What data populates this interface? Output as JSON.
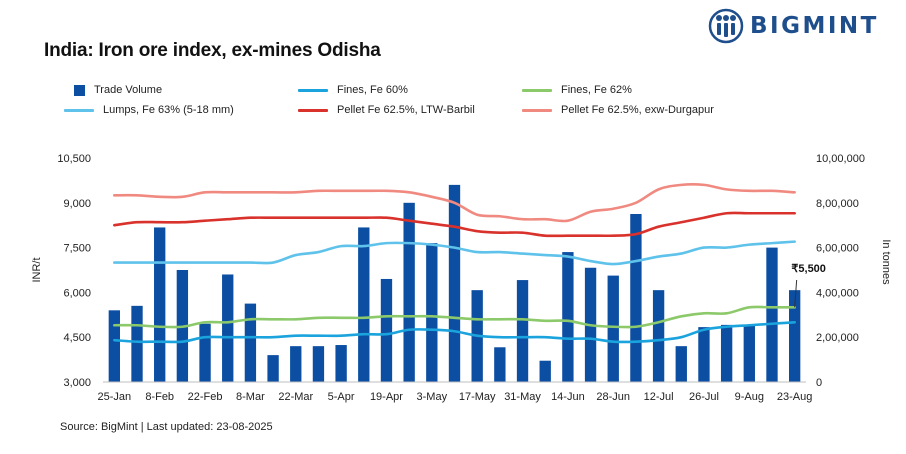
{
  "header": {
    "title": "India: Iron ore index, ex-mines Odisha",
    "brand": "BIGMINT"
  },
  "source": "Source: BigMint | Last updated: 23-08-2025",
  "colors": {
    "trade_volume": "#0b4ea2",
    "fines_fe60": "#1aa3dc",
    "fines_fe62": "#8cc96a",
    "lumps_fe63": "#5fc2ea",
    "pellet_barbil": "#d9312b",
    "pellet_durgapur": "#f08a80"
  },
  "chart_data": {
    "type": "bar",
    "x": [
      "25-Jan",
      "1-Feb",
      "8-Feb",
      "15-Feb",
      "22-Feb",
      "1-Mar",
      "8-Mar",
      "15-Mar",
      "22-Mar",
      "29-Mar",
      "5-Apr",
      "12-Apr",
      "19-Apr",
      "26-Apr",
      "3-May",
      "10-May",
      "17-May",
      "24-May",
      "31-May",
      "7-Jun",
      "14-Jun",
      "21-Jun",
      "28-Jun",
      "5-Jul",
      "12-Jul",
      "19-Jul",
      "26-Jul",
      "2-Aug",
      "9-Aug",
      "16-Aug",
      "23-Aug"
    ],
    "tick_labels": [
      "25-Jan",
      "8-Feb",
      "22-Feb",
      "8-Mar",
      "22-Mar",
      "5-Apr",
      "19-Apr",
      "3-May",
      "17-May",
      "31-May",
      "14-Jun",
      "28-Jun",
      "12-Jul",
      "26-Jul",
      "9-Aug",
      "23-Aug"
    ],
    "left_axis": {
      "label": "INR/t",
      "min": 3000,
      "max": 10500,
      "ticks": [
        "3,000",
        "4,500",
        "6,000",
        "7,500",
        "9,000",
        "10,500"
      ],
      "tick_values": [
        3000,
        4500,
        6000,
        7500,
        9000,
        10500
      ]
    },
    "right_axis": {
      "label": "In tonnes",
      "min": 0,
      "max": 1000000,
      "ticks": [
        "0",
        "2,00,000",
        "4,00,000",
        "6,00,000",
        "8,00,000",
        "10,00,000"
      ],
      "tick_values": [
        0,
        200000,
        400000,
        600000,
        800000,
        1000000
      ]
    },
    "bars": {
      "name": "Trade Volume",
      "axis": "right",
      "values": [
        320000,
        340000,
        690000,
        500000,
        260000,
        480000,
        350000,
        120000,
        160000,
        160000,
        165000,
        690000,
        460000,
        800000,
        620000,
        880000,
        410000,
        155000,
        455000,
        95000,
        580000,
        510000,
        475000,
        750000,
        410000,
        160000,
        245000,
        255000,
        255000,
        600000,
        410000
      ]
    },
    "series": [
      {
        "name": "Fines, Fe 60%",
        "axis": "left",
        "values": [
          4400,
          4350,
          4350,
          4350,
          4500,
          4500,
          4500,
          4500,
          4550,
          4550,
          4550,
          4600,
          4600,
          4750,
          4750,
          4700,
          4550,
          4500,
          4500,
          4500,
          4450,
          4450,
          4350,
          4350,
          4400,
          4500,
          4750,
          4850,
          4900,
          4950,
          5000
        ]
      },
      {
        "name": "Fines, Fe 62%",
        "axis": "left",
        "values": [
          4900,
          4900,
          4850,
          4850,
          5000,
          5000,
          5100,
          5100,
          5100,
          5150,
          5150,
          5150,
          5200,
          5200,
          5200,
          5150,
          5100,
          5100,
          5100,
          5050,
          5050,
          4900,
          4850,
          4850,
          5000,
          5200,
          5300,
          5300,
          5500,
          5500,
          5500
        ]
      },
      {
        "name": "Lumps, Fe 63% (5-18 mm)",
        "axis": "left",
        "values": [
          7000,
          7000,
          7000,
          7000,
          7000,
          7000,
          7000,
          7000,
          7250,
          7350,
          7550,
          7550,
          7650,
          7650,
          7600,
          7500,
          7350,
          7350,
          7300,
          7250,
          7200,
          7050,
          6950,
          7050,
          7200,
          7300,
          7500,
          7500,
          7600,
          7650,
          7700
        ]
      },
      {
        "name": "Pellet Fe 62.5%, LTW-Barbil",
        "axis": "left",
        "values": [
          8250,
          8350,
          8350,
          8350,
          8400,
          8450,
          8500,
          8500,
          8500,
          8500,
          8500,
          8500,
          8500,
          8400,
          8300,
          8200,
          8050,
          8000,
          8000,
          7900,
          7900,
          7900,
          7900,
          7950,
          8200,
          8350,
          8500,
          8650,
          8650,
          8650,
          8650
        ]
      },
      {
        "name": "Pellet Fe 62.5%, exw-Durgapur",
        "axis": "left",
        "values": [
          9250,
          9250,
          9200,
          9200,
          9350,
          9350,
          9350,
          9350,
          9350,
          9400,
          9400,
          9400,
          9400,
          9350,
          9200,
          9000,
          8600,
          8550,
          8450,
          8450,
          8400,
          8700,
          8800,
          9000,
          9450,
          9600,
          9600,
          9450,
          9400,
          9400,
          9350
        ]
      }
    ],
    "annotation": {
      "label": "₹5,500",
      "series": "Fines, Fe 62%",
      "index": 30
    },
    "grid": false,
    "legend": "top"
  },
  "legend": {
    "items": [
      {
        "label": "Trade Volume"
      },
      {
        "label": "Fines, Fe 60%"
      },
      {
        "label": "Fines, Fe 62%"
      },
      {
        "label": "Lumps, Fe 63% (5-18 mm)"
      },
      {
        "label": "Pellet Fe 62.5%, LTW-Barbil"
      },
      {
        "label": "Pellet Fe 62.5%, exw-Durgapur"
      }
    ]
  }
}
